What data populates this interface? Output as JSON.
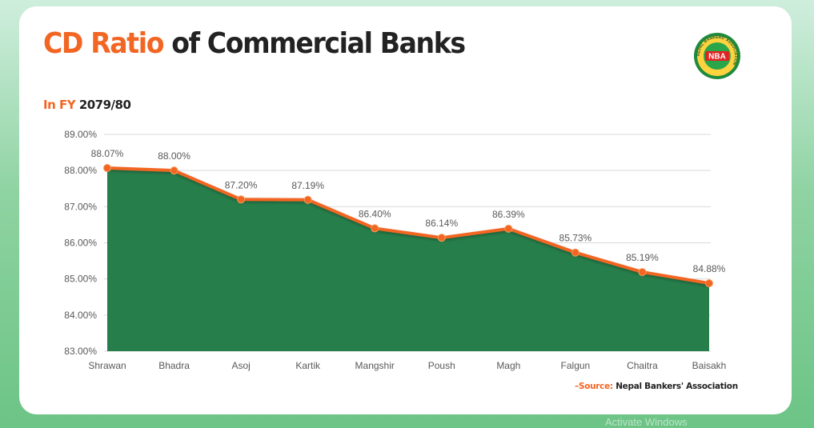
{
  "header": {
    "title_accent": "CD Ratio",
    "title_rest": " of Commercial Banks",
    "subtitle_accent": "In FY ",
    "subtitle_rest": "2079/80"
  },
  "logo": {
    "text": "NBA",
    "ring_text": "NEPAL BANKERS' ASSOCIATION"
  },
  "footer": {
    "source_label": "–Source:",
    "source_text": "Nepal Bankers' Association",
    "watermark": "Activate Windows"
  },
  "colors": {
    "accent": "#f26522",
    "area": "#267e4b",
    "line": "#f26522"
  },
  "chart_data": {
    "type": "area",
    "title": "CD Ratio of Commercial Banks",
    "subtitle": "In FY 2079/80",
    "categories": [
      "Shrawan",
      "Bhadra",
      "Asoj",
      "Kartik",
      "Mangshir",
      "Poush",
      "Magh",
      "Falgun",
      "Chaitra",
      "Baisakh"
    ],
    "values": [
      88.07,
      88.0,
      87.2,
      87.19,
      86.4,
      86.14,
      86.39,
      85.73,
      85.19,
      84.88
    ],
    "value_labels": [
      "88.07%",
      "88.00%",
      "87.20%",
      "87.19%",
      "86.40%",
      "86.14%",
      "86.39%",
      "85.73%",
      "85.19%",
      "84.88%"
    ],
    "ylim": [
      83,
      89
    ],
    "yticks": [
      83,
      84,
      85,
      86,
      87,
      88,
      89
    ],
    "ytick_labels": [
      "83.00%",
      "84.00%",
      "85.00%",
      "86.00%",
      "87.00%",
      "88.00%",
      "89.00%"
    ],
    "xlabel": "",
    "ylabel": "",
    "grid": true,
    "legend": "none"
  }
}
